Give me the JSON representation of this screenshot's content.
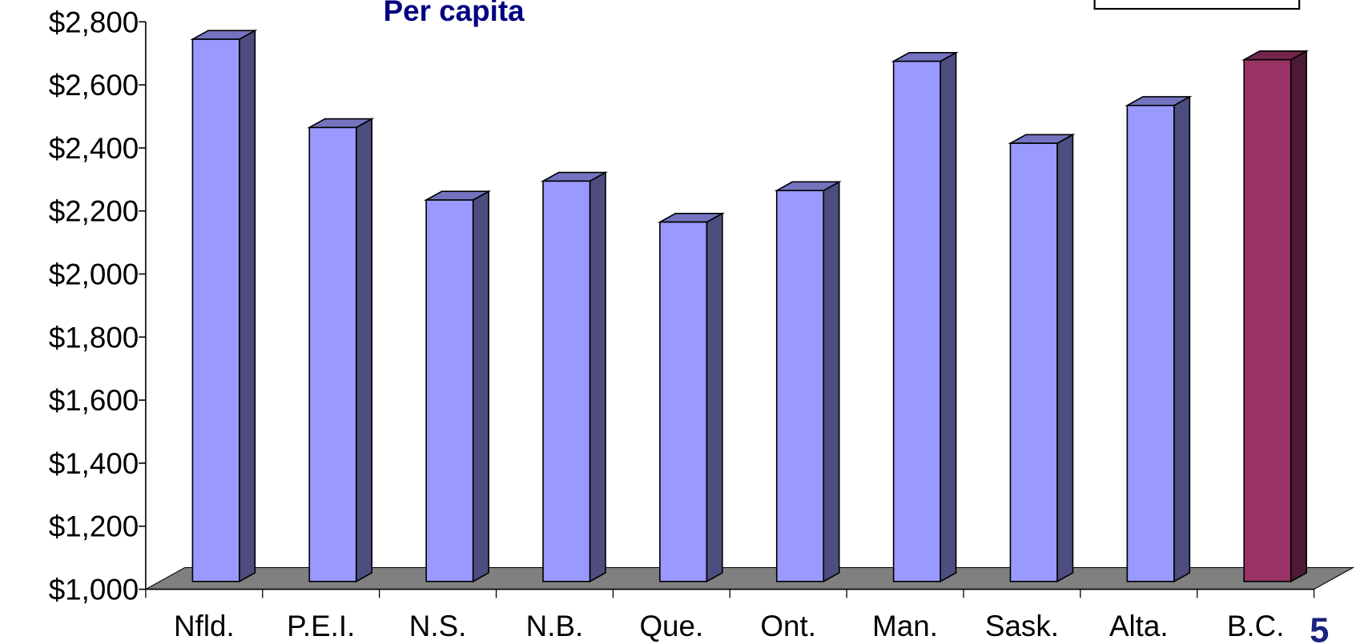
{
  "chart_data": {
    "type": "bar3d",
    "title": "Per capita",
    "categories": [
      "Nfld.",
      "P.E.I.",
      "N.S.",
      "N.B.",
      "Que.",
      "Ont.",
      "Man.",
      "Sask.",
      "Alta.",
      "B.C."
    ],
    "values": [
      2720,
      2440,
      2210,
      2270,
      2140,
      2240,
      2650,
      2390,
      2510,
      2655
    ],
    "colors": [
      "#9999ff",
      "#9999ff",
      "#9999ff",
      "#9999ff",
      "#9999ff",
      "#9999ff",
      "#9999ff",
      "#9999ff",
      "#9999ff",
      "#993366"
    ],
    "ylim": [
      1000,
      2800
    ],
    "yticks": [
      {
        "value": 1000,
        "label": "$1,000"
      },
      {
        "value": 1200,
        "label": "$1,200"
      },
      {
        "value": 1400,
        "label": "$1,400"
      },
      {
        "value": 1600,
        "label": "$1,600"
      },
      {
        "value": 1800,
        "label": "$1,800"
      },
      {
        "value": 2000,
        "label": "$2,000"
      },
      {
        "value": 2200,
        "label": "$2,200"
      },
      {
        "value": 2400,
        "label": "$2,400"
      },
      {
        "value": 2600,
        "label": "$2,600"
      },
      {
        "value": 2800,
        "label": "$2,800"
      }
    ],
    "page_number": "5"
  }
}
